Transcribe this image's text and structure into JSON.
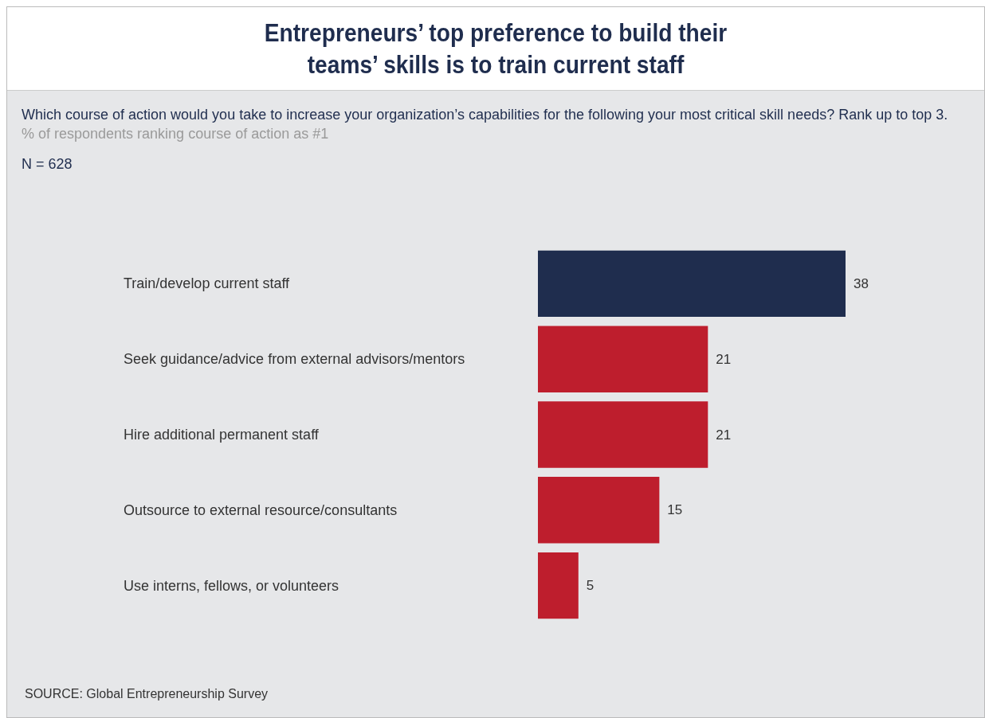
{
  "chart_data": {
    "type": "bar",
    "orientation": "horizontal",
    "title": "Entrepreneurs’ top preference to build their teams’ skills is to train current staff",
    "subtitle": "Which course of action would you take to increase your organization’s capabilities for the following your most critical skill needs? Rank up to top 3.",
    "annotations": [
      "% of respondents ranking course of action as #1",
      "N = 628",
      "SOURCE: Global Entrepreneurship Survey"
    ],
    "categories": [
      "Train/develop current staff",
      "Seek guidance/advice from external advisors/mentors",
      "Hire additional permanent staff",
      "Outsource to external resource/consultants",
      "Use interns, fellows, or volunteers"
    ],
    "values": [
      38,
      21,
      21,
      15,
      5
    ],
    "colors": [
      "#1f2d4e",
      "#be1e2d",
      "#be1e2d",
      "#be1e2d",
      "#be1e2d"
    ],
    "data_labels": true
  }
}
